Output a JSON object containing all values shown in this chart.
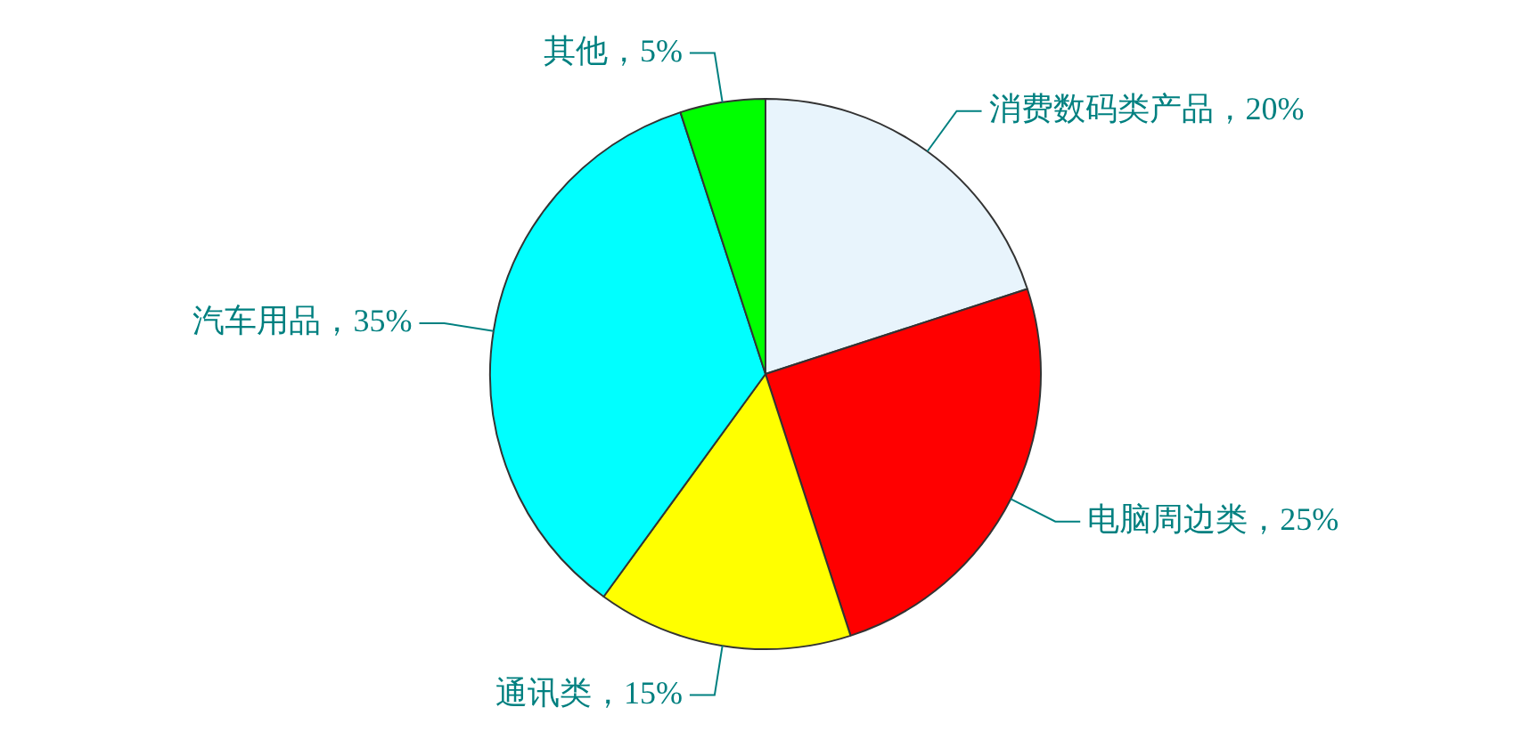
{
  "chart_data": {
    "type": "pie",
    "categories": [
      "消费数码类产品",
      "电脑周边类",
      "通讯类",
      "汽车用品",
      "其他"
    ],
    "values": [
      20,
      25,
      15,
      35,
      5
    ],
    "colors": [
      "#e8f4fc",
      "#ff0000",
      "#ffff00",
      "#00ffff",
      "#00ff00"
    ],
    "value_labels": [
      "20%",
      "25%",
      "15%",
      "35%",
      "5%"
    ],
    "legend": false
  }
}
